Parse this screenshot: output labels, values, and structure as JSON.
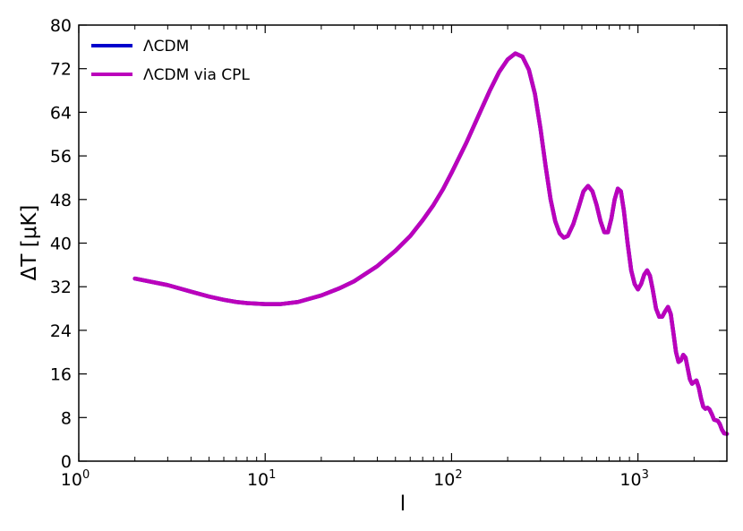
{
  "chart_data": {
    "type": "line",
    "xlabel": "l",
    "ylabel": "ΔT [μK]",
    "xscale": "log",
    "xlim": [
      1,
      3000
    ],
    "ylim": [
      0,
      80
    ],
    "xticks": [
      {
        "value": 1,
        "base": "10",
        "exp": "0"
      },
      {
        "value": 10,
        "base": "10",
        "exp": "1"
      },
      {
        "value": 100,
        "base": "10",
        "exp": "2"
      },
      {
        "value": 1000,
        "base": "10",
        "exp": "3"
      }
    ],
    "yticks": [
      "0",
      "8",
      "16",
      "24",
      "32",
      "40",
      "48",
      "56",
      "64",
      "72",
      "80"
    ],
    "grid": false,
    "legend_position": "top-left",
    "series": [
      {
        "name": "ΛCDM",
        "color": "#0000cc",
        "points": [
          [
            2,
            33.5
          ],
          [
            3,
            32.3
          ],
          [
            4,
            31.1
          ],
          [
            5,
            30.2
          ],
          [
            6,
            29.6
          ],
          [
            7,
            29.2
          ],
          [
            8,
            29.0
          ],
          [
            10,
            28.8
          ],
          [
            12,
            28.8
          ],
          [
            15,
            29.2
          ],
          [
            20,
            30.4
          ],
          [
            25,
            31.7
          ],
          [
            30,
            33.0
          ],
          [
            40,
            35.8
          ],
          [
            50,
            38.6
          ],
          [
            60,
            41.3
          ],
          [
            70,
            44.2
          ],
          [
            80,
            47.0
          ],
          [
            90,
            49.9
          ],
          [
            100,
            52.9
          ],
          [
            120,
            58.4
          ],
          [
            140,
            63.5
          ],
          [
            160,
            67.9
          ],
          [
            180,
            71.4
          ],
          [
            200,
            73.7
          ],
          [
            220,
            74.8
          ],
          [
            240,
            74.2
          ],
          [
            260,
            71.8
          ],
          [
            280,
            67.4
          ],
          [
            300,
            61.0
          ],
          [
            320,
            54.0
          ],
          [
            340,
            48.0
          ],
          [
            360,
            44.0
          ],
          [
            380,
            41.8
          ],
          [
            400,
            41.0
          ],
          [
            420,
            41.3
          ],
          [
            450,
            43.5
          ],
          [
            480,
            46.5
          ],
          [
            510,
            49.5
          ],
          [
            540,
            50.5
          ],
          [
            570,
            49.5
          ],
          [
            600,
            47.0
          ],
          [
            630,
            44.0
          ],
          [
            660,
            42.0
          ],
          [
            690,
            42.0
          ],
          [
            720,
            44.5
          ],
          [
            750,
            48.0
          ],
          [
            780,
            50.0
          ],
          [
            810,
            49.5
          ],
          [
            840,
            46.0
          ],
          [
            880,
            40.0
          ],
          [
            920,
            35.0
          ],
          [
            960,
            32.5
          ],
          [
            1000,
            31.5
          ],
          [
            1040,
            32.5
          ],
          [
            1080,
            34.2
          ],
          [
            1120,
            35.0
          ],
          [
            1160,
            34.0
          ],
          [
            1200,
            31.5
          ],
          [
            1250,
            28.0
          ],
          [
            1300,
            26.5
          ],
          [
            1350,
            26.5
          ],
          [
            1400,
            27.5
          ],
          [
            1450,
            28.3
          ],
          [
            1500,
            27.0
          ],
          [
            1550,
            23.5
          ],
          [
            1600,
            20.0
          ],
          [
            1650,
            18.2
          ],
          [
            1700,
            18.5
          ],
          [
            1750,
            19.5
          ],
          [
            1800,
            19.0
          ],
          [
            1850,
            17.0
          ],
          [
            1900,
            15.0
          ],
          [
            1950,
            14.2
          ],
          [
            2000,
            14.5
          ],
          [
            2060,
            14.8
          ],
          [
            2120,
            13.5
          ],
          [
            2180,
            11.5
          ],
          [
            2240,
            10.0
          ],
          [
            2300,
            9.6
          ],
          [
            2360,
            9.8
          ],
          [
            2420,
            9.5
          ],
          [
            2500,
            8.5
          ],
          [
            2560,
            7.6
          ],
          [
            2620,
            7.5
          ],
          [
            2680,
            7.4
          ],
          [
            2750,
            6.8
          ],
          [
            2820,
            5.8
          ],
          [
            2900,
            5.1
          ],
          [
            3000,
            5.0
          ]
        ]
      },
      {
        "name": "ΛCDM via CPL",
        "color": "#bb00bb",
        "points": [
          [
            2,
            33.5
          ],
          [
            3,
            32.3
          ],
          [
            4,
            31.1
          ],
          [
            5,
            30.2
          ],
          [
            6,
            29.6
          ],
          [
            7,
            29.2
          ],
          [
            8,
            29.0
          ],
          [
            10,
            28.8
          ],
          [
            12,
            28.8
          ],
          [
            15,
            29.2
          ],
          [
            20,
            30.4
          ],
          [
            25,
            31.7
          ],
          [
            30,
            33.0
          ],
          [
            40,
            35.8
          ],
          [
            50,
            38.6
          ],
          [
            60,
            41.3
          ],
          [
            70,
            44.2
          ],
          [
            80,
            47.0
          ],
          [
            90,
            49.9
          ],
          [
            100,
            52.9
          ],
          [
            120,
            58.4
          ],
          [
            140,
            63.5
          ],
          [
            160,
            67.9
          ],
          [
            180,
            71.4
          ],
          [
            200,
            73.7
          ],
          [
            220,
            74.8
          ],
          [
            240,
            74.2
          ],
          [
            260,
            71.8
          ],
          [
            280,
            67.4
          ],
          [
            300,
            61.0
          ],
          [
            320,
            54.0
          ],
          [
            340,
            48.0
          ],
          [
            360,
            44.0
          ],
          [
            380,
            41.8
          ],
          [
            400,
            41.0
          ],
          [
            420,
            41.3
          ],
          [
            450,
            43.5
          ],
          [
            480,
            46.5
          ],
          [
            510,
            49.5
          ],
          [
            540,
            50.5
          ],
          [
            570,
            49.5
          ],
          [
            600,
            47.0
          ],
          [
            630,
            44.0
          ],
          [
            660,
            42.0
          ],
          [
            690,
            42.0
          ],
          [
            720,
            44.5
          ],
          [
            750,
            48.0
          ],
          [
            780,
            50.0
          ],
          [
            810,
            49.5
          ],
          [
            840,
            46.0
          ],
          [
            880,
            40.0
          ],
          [
            920,
            35.0
          ],
          [
            960,
            32.5
          ],
          [
            1000,
            31.5
          ],
          [
            1040,
            32.5
          ],
          [
            1080,
            34.2
          ],
          [
            1120,
            35.0
          ],
          [
            1160,
            34.0
          ],
          [
            1200,
            31.5
          ],
          [
            1250,
            28.0
          ],
          [
            1300,
            26.5
          ],
          [
            1350,
            26.5
          ],
          [
            1400,
            27.5
          ],
          [
            1450,
            28.3
          ],
          [
            1500,
            27.0
          ],
          [
            1550,
            23.5
          ],
          [
            1600,
            20.0
          ],
          [
            1650,
            18.2
          ],
          [
            1700,
            18.5
          ],
          [
            1750,
            19.5
          ],
          [
            1800,
            19.0
          ],
          [
            1850,
            17.0
          ],
          [
            1900,
            15.0
          ],
          [
            1950,
            14.2
          ],
          [
            2000,
            14.5
          ],
          [
            2060,
            14.8
          ],
          [
            2120,
            13.5
          ],
          [
            2180,
            11.5
          ],
          [
            2240,
            10.0
          ],
          [
            2300,
            9.6
          ],
          [
            2360,
            9.8
          ],
          [
            2420,
            9.5
          ],
          [
            2500,
            8.5
          ],
          [
            2560,
            7.6
          ],
          [
            2620,
            7.5
          ],
          [
            2680,
            7.4
          ],
          [
            2750,
            6.8
          ],
          [
            2820,
            5.8
          ],
          [
            2900,
            5.1
          ],
          [
            3000,
            5.0
          ]
        ]
      }
    ]
  }
}
